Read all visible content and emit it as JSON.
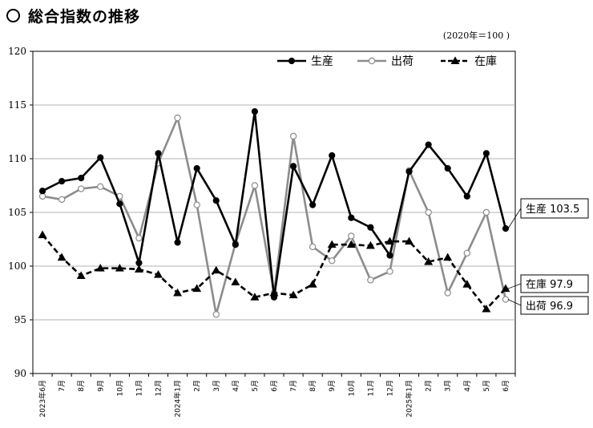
{
  "header": {
    "title": "総合指数の推移",
    "base_note": "(2020年＝100 )"
  },
  "chart_data": {
    "type": "line",
    "title": "総合指数の推移",
    "ylim": [
      90,
      120
    ],
    "yticks": [
      90,
      95,
      100,
      105,
      110,
      115,
      120
    ],
    "grid": "horizontal",
    "legend_position": "top-right",
    "categories": [
      "2023年6月",
      "7月",
      "8月",
      "9月",
      "10月",
      "11月",
      "12月",
      "2024年1月",
      "2月",
      "3月",
      "4月",
      "5月",
      "6月",
      "7月",
      "8月",
      "9月",
      "10月",
      "11月",
      "12月",
      "2025年1月",
      "2月",
      "3月",
      "4月",
      "5月",
      "6月"
    ],
    "series": [
      {
        "name": "生産",
        "color": "#000000",
        "style": "solid",
        "marker": "filled-circle",
        "values": [
          107.0,
          107.9,
          108.2,
          110.1,
          105.8,
          100.3,
          110.5,
          102.2,
          109.1,
          106.1,
          102.0,
          114.4,
          97.1,
          109.3,
          105.7,
          110.3,
          104.5,
          103.6,
          101.0,
          108.8,
          111.3,
          109.1,
          106.5,
          110.5,
          103.5
        ]
      },
      {
        "name": "出荷",
        "color": "#8c8c8c",
        "style": "solid",
        "marker": "open-circle",
        "values": [
          106.5,
          106.2,
          107.2,
          107.4,
          106.5,
          102.6,
          109.6,
          113.8,
          105.7,
          95.5,
          102.1,
          107.5,
          97.5,
          112.1,
          101.8,
          100.5,
          102.8,
          98.7,
          99.5,
          108.9,
          105.0,
          97.5,
          101.2,
          105.0,
          96.9
        ]
      },
      {
        "name": "在庫",
        "color": "#000000",
        "style": "dashed",
        "marker": "filled-triangle",
        "values": [
          102.9,
          100.8,
          99.1,
          99.8,
          99.8,
          99.7,
          99.2,
          97.5,
          97.9,
          99.6,
          98.5,
          97.1,
          97.5,
          97.3,
          98.3,
          102.0,
          102.0,
          101.9,
          102.3,
          102.3,
          100.4,
          100.8,
          98.3,
          96.0,
          97.9
        ]
      }
    ],
    "callouts": [
      {
        "series": "生産",
        "text": "生産 103.5"
      },
      {
        "series": "在庫",
        "text": "在庫 97.9"
      },
      {
        "series": "出荷",
        "text": "出荷 96.9"
      }
    ]
  }
}
